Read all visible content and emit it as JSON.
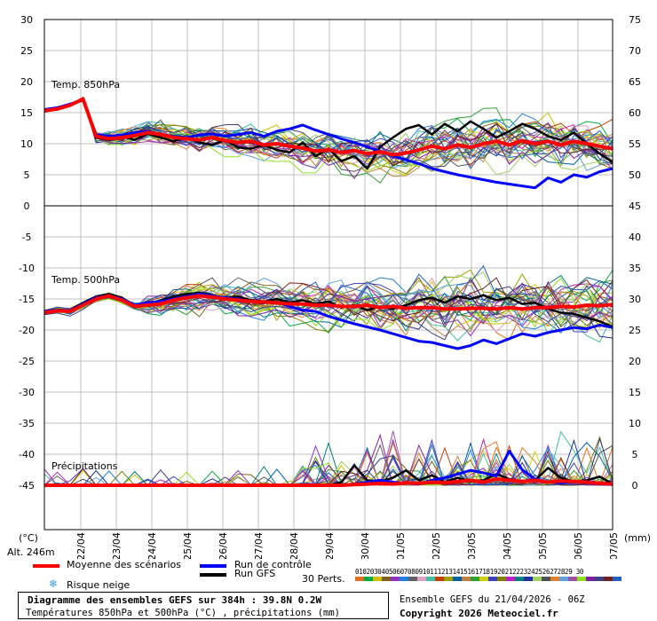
{
  "chart_data": {
    "type": "line",
    "axis_labels": {
      "left_unit": "(°C)",
      "right_unit": "(mm)",
      "altitude": "Alt. 246m"
    },
    "x_dates": [
      "22/04",
      "23/04",
      "24/04",
      "25/04",
      "26/04",
      "27/04",
      "28/04",
      "29/04",
      "30/04",
      "01/05",
      "02/05",
      "03/05",
      "04/05",
      "05/05",
      "06/05",
      "07/05"
    ],
    "upper_panel": {
      "label": "Temp. 850hPa",
      "left_ticks": [
        30,
        25,
        20,
        15,
        10,
        5,
        0
      ],
      "right_ticks": [
        75,
        70,
        65,
        60,
        55,
        50,
        45
      ],
      "ylim": [
        0,
        33
      ],
      "mean": [
        15.3,
        15.6,
        16.2,
        17.2,
        11.2,
        10.8,
        11.0,
        11.3,
        11.8,
        11.5,
        11.0,
        10.8,
        10.6,
        11.0,
        10.5,
        10.2,
        10.4,
        9.8,
        10.0,
        9.6,
        9.3,
        8.8,
        9.0,
        8.6,
        8.9,
        8.4,
        8.7,
        8.2,
        8.5,
        9.0,
        9.6,
        9.2,
        9.8,
        9.4,
        10.0,
        10.4,
        9.8,
        10.5,
        10.0,
        10.4,
        9.8,
        10.4,
        10.0,
        9.6,
        9.2
      ],
      "control": [
        15.5,
        15.8,
        16.4,
        17.0,
        11.5,
        11.2,
        11.4,
        11.8,
        12.0,
        11.5,
        11.2,
        11.0,
        11.4,
        11.6,
        11.2,
        11.5,
        11.8,
        11.2,
        12.0,
        12.4,
        13.0,
        12.2,
        11.5,
        10.8,
        10.2,
        9.5,
        8.8,
        8.0,
        7.4,
        6.8,
        6.0,
        5.5,
        5.0,
        4.6,
        4.2,
        3.8,
        3.5,
        3.2,
        2.9,
        4.5,
        3.8,
        5.0,
        4.6,
        5.5,
        6.0
      ],
      "gfs": [
        15.4,
        15.7,
        16.3,
        17.0,
        11.0,
        10.6,
        11.2,
        10.6,
        11.6,
        11.0,
        10.4,
        11.0,
        10.2,
        9.8,
        10.6,
        9.4,
        9.2,
        9.8,
        9.0,
        8.6,
        10.2,
        8.0,
        9.2,
        7.2,
        8.0,
        6.0,
        9.5,
        11.0,
        12.4,
        13.0,
        11.5,
        13.2,
        12.0,
        13.6,
        12.4,
        11.0,
        12.0,
        13.2,
        12.4,
        11.2,
        10.6,
        11.8,
        10.0,
        8.4,
        7.0
      ]
    },
    "lower_panel": {
      "label": "Temp. 500hPa",
      "left_ticks": [
        -5,
        -10,
        -15,
        -20,
        -25,
        -30,
        -35,
        -40,
        -45
      ],
      "right_ticks": [
        40,
        35,
        30,
        25,
        20,
        15,
        10,
        5,
        0
      ],
      "ylim": [
        -52,
        0
      ],
      "mean": [
        -17.2,
        -16.9,
        -17.0,
        -16.0,
        -15.0,
        -14.5,
        -15.2,
        -16.2,
        -16.0,
        -15.8,
        -15.2,
        -14.8,
        -14.5,
        -14.7,
        -15.0,
        -15.2,
        -15.4,
        -15.5,
        -15.6,
        -15.8,
        -15.8,
        -16.0,
        -16.0,
        -16.2,
        -16.2,
        -16.0,
        -16.4,
        -16.2,
        -16.5,
        -16.4,
        -16.4,
        -16.6,
        -16.6,
        -16.5,
        -16.5,
        -16.6,
        -16.4,
        -16.6,
        -16.4,
        -16.4,
        -16.2,
        -16.3,
        -16.0,
        -16.1,
        -15.9
      ],
      "control": [
        -17.0,
        -16.8,
        -16.9,
        -15.8,
        -14.8,
        -14.4,
        -15.0,
        -16.0,
        -15.6,
        -15.4,
        -15.0,
        -14.6,
        -14.2,
        -14.5,
        -14.8,
        -15.0,
        -15.4,
        -15.6,
        -15.5,
        -16.2,
        -16.8,
        -17.0,
        -17.8,
        -18.4,
        -19.0,
        -19.5,
        -20.0,
        -20.6,
        -21.2,
        -21.8,
        -22.0,
        -22.5,
        -23.0,
        -22.5,
        -21.6,
        -22.2,
        -21.4,
        -20.6,
        -21.0,
        -20.4,
        -20.0,
        -19.6,
        -19.8,
        -19.2,
        -19.6
      ],
      "gfs": [
        -17.0,
        -16.8,
        -16.8,
        -15.6,
        -14.6,
        -14.2,
        -14.8,
        -16.2,
        -15.8,
        -15.2,
        -14.6,
        -14.2,
        -14.0,
        -14.4,
        -14.8,
        -14.6,
        -15.2,
        -15.4,
        -15.0,
        -15.6,
        -15.2,
        -15.8,
        -15.4,
        -16.4,
        -16.0,
        -16.8,
        -16.2,
        -16.6,
        -16.0,
        -15.2,
        -14.8,
        -15.6,
        -14.6,
        -15.0,
        -14.4,
        -15.2,
        -14.8,
        -15.8,
        -15.6,
        -16.6,
        -17.2,
        -17.4,
        -18.0,
        -18.6,
        -19.5
      ]
    },
    "precipitation": {
      "label": "Précipitations",
      "mean": [
        0,
        0,
        0,
        0,
        0,
        0,
        0,
        0,
        0,
        0,
        0,
        0,
        0,
        0,
        0,
        0,
        0,
        0,
        0,
        0,
        0,
        0,
        0,
        0,
        0.1,
        0.2,
        0.3,
        0.2,
        0.4,
        0.3,
        0.5,
        0.4,
        0.6,
        0.8,
        0.5,
        1.0,
        0.8,
        0.6,
        0.8,
        0.5,
        0.7,
        0.6,
        0.5,
        0.3,
        0.2
      ],
      "control": [
        0,
        0,
        0,
        0,
        0,
        0,
        0,
        0,
        0,
        0,
        0,
        0,
        0,
        0,
        0,
        0,
        0,
        0,
        0,
        0,
        0,
        0,
        0,
        0,
        0.2,
        0.5,
        0.8,
        0.5,
        0.3,
        0.2,
        0.8,
        1.2,
        1.8,
        2.4,
        2.0,
        1.5,
        5.5,
        2.5,
        1.0,
        0.5,
        0.4,
        0.6,
        0.4,
        0.2,
        0.1
      ],
      "gfs": [
        0,
        0,
        0,
        0,
        0,
        0,
        0,
        0,
        0,
        0,
        0,
        0,
        0,
        0,
        0,
        0,
        0,
        0,
        0,
        0,
        0,
        0,
        0,
        0.5,
        3.2,
        0.8,
        0.6,
        1.2,
        2.4,
        0.8,
        1.6,
        0.5,
        1.2,
        0.6,
        0.8,
        1.8,
        1.0,
        0.6,
        0.8,
        2.8,
        1.2,
        0.6,
        0.8,
        1.4,
        0.2
      ]
    },
    "legend": {
      "mean": "Moyenne des scénarios",
      "control": "Run de contrôle",
      "gfs": "Run GFS",
      "snow": "Risque neige",
      "perts_label": "30 Perts.",
      "pert_numbers": "0102030405060708091011121314151617181920212223242526272829 30"
    },
    "colors": {
      "mean": "#ff0000",
      "control": "#0000ff",
      "gfs": "#000000",
      "grid": "#c0c0c0",
      "snow": "#3399dd",
      "perturbations": [
        "#e07020",
        "#00aa44",
        "#d0c000",
        "#806020",
        "#9030c0",
        "#2080e0",
        "#606060",
        "#e0a0c0",
        "#40c0a0",
        "#c04000",
        "#a0a000",
        "#0060a0",
        "#c08040",
        "#30a030",
        "#d0d000",
        "#4040c0",
        "#808000",
        "#c020c0",
        "#008080",
        "#2030a0",
        "#a0d060",
        "#505050",
        "#e08030",
        "#60a0e0",
        "#a050a0",
        "#90e020",
        "#8020a0",
        "#404080",
        "#702020",
        "#2060c0"
      ]
    }
  },
  "footer": {
    "title": "Diagramme des ensembles GEFS sur 384h : 39.8N 0.2W",
    "subtitle": "Températures 850hPa et 500hPa (°C) , précipitations (mm)",
    "ensemble": "Ensemble GEFS du 21/04/2026 - 06Z",
    "copyright": "Copyright 2026 Meteociel.fr"
  }
}
